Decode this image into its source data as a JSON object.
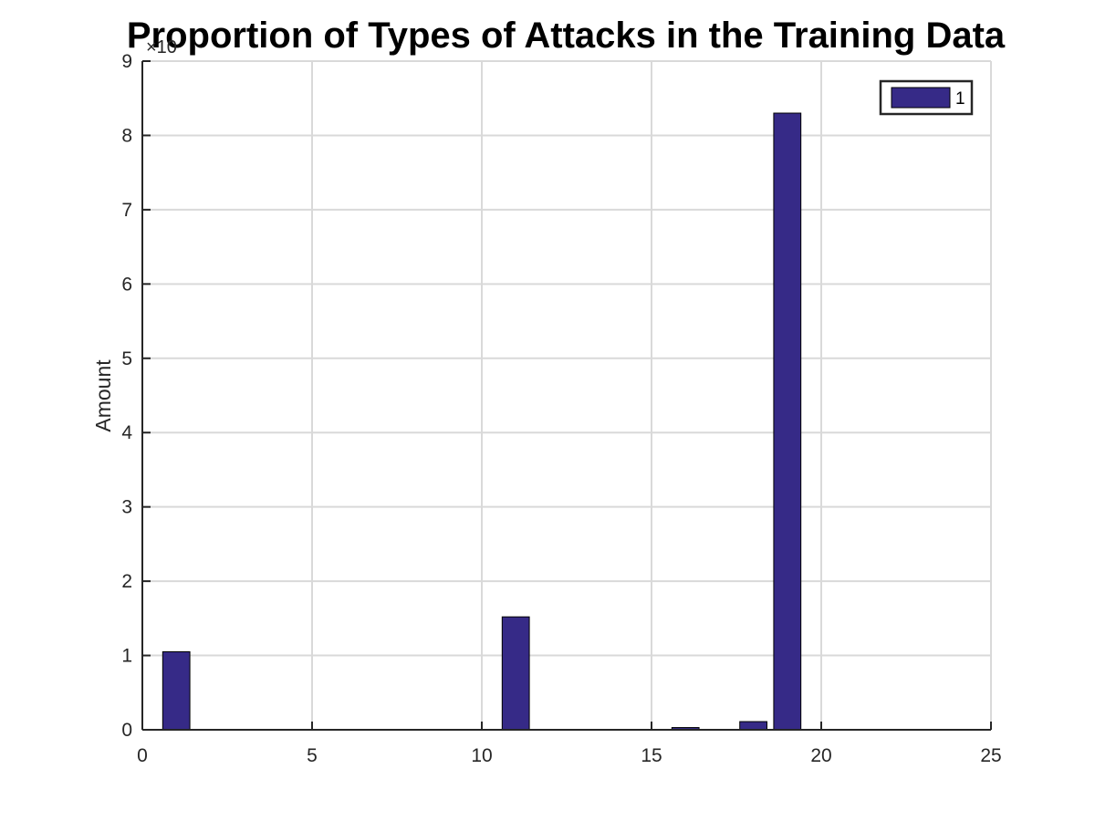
{
  "chart_data": {
    "type": "bar",
    "title": "Proportion of Types of Attacks in the Training Data",
    "xlabel": "",
    "ylabel": "Amount",
    "y_exponent_label": "×10",
    "xlim": [
      0,
      25
    ],
    "ylim": [
      0,
      9
    ],
    "xticks": [
      0,
      5,
      10,
      15,
      20,
      25
    ],
    "yticks": [
      0,
      1,
      2,
      3,
      4,
      5,
      6,
      7,
      8,
      9
    ],
    "grid": true,
    "legend": {
      "position": "top-right",
      "entries": [
        "1"
      ]
    },
    "bar_color": "#362a87",
    "series": [
      {
        "name": "1",
        "x": [
          1,
          2,
          3,
          4,
          5,
          6,
          7,
          8,
          9,
          10,
          11,
          12,
          13,
          14,
          15,
          16,
          17,
          18,
          19,
          20,
          21,
          22,
          23
        ],
        "values": [
          1.05,
          0,
          0,
          0,
          0,
          0,
          0.005,
          0,
          0,
          0,
          1.52,
          0,
          0,
          0,
          0,
          0.03,
          0,
          0.11,
          8.3,
          0,
          0,
          0.005,
          0
        ]
      }
    ]
  }
}
